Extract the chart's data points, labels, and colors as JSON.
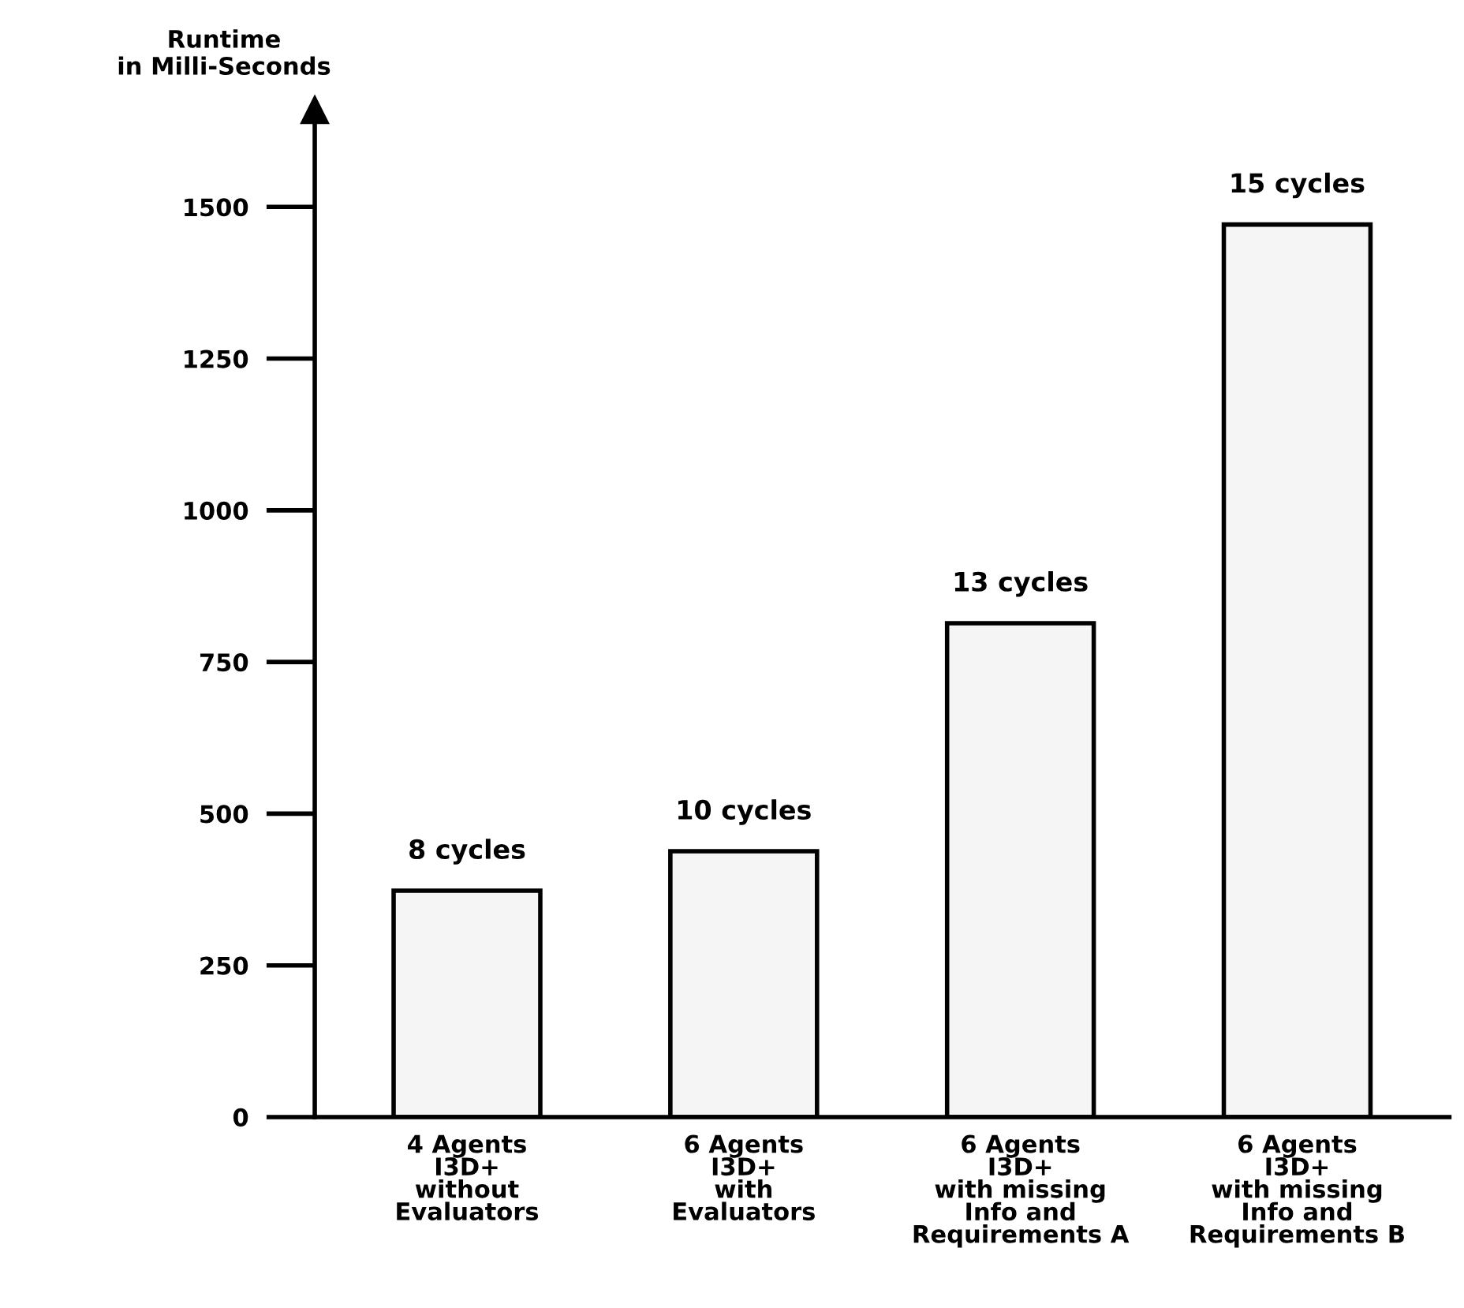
{
  "chart_data": {
    "type": "bar",
    "ylabel": "Runtime\nin Milli-Seconds",
    "categories": [
      "4 Agents\nI3D+\nwithout\nEvaluators",
      "6 Agents\nI3D+\nwith\nEvaluators",
      "6 Agents\nI3D+\nwith missing\nInfo and\nRequirements A",
      "6 Agents\nI3D+\nwith missing\nInfo and\nRequirements B"
    ],
    "values": [
      373,
      438,
      814,
      1471
    ],
    "annotations": [
      {
        "text": "8 cycles",
        "x": "4 Agents\nI3D+\nwithout\nEvaluators",
        "y": 373
      },
      {
        "text": "10 cycles",
        "x": "6 Agents\nI3D+\nwith\nEvaluators",
        "y": 438
      },
      {
        "text": "13 cycles",
        "x": "6 Agents\nI3D+\nwith missing\nInfo and\nRequirements A",
        "y": 814
      },
      {
        "text": "15 cycles",
        "x": "6 Agents\nI3D+\nwith missing\nInfo and\nRequirements B",
        "y": 1471
      }
    ],
    "color": "#f5f5f5",
    "ylim": [
      0,
      1660
    ],
    "yticks": [
      0,
      250,
      500,
      750,
      1000,
      1250,
      1500
    ],
    "grid": false
  }
}
